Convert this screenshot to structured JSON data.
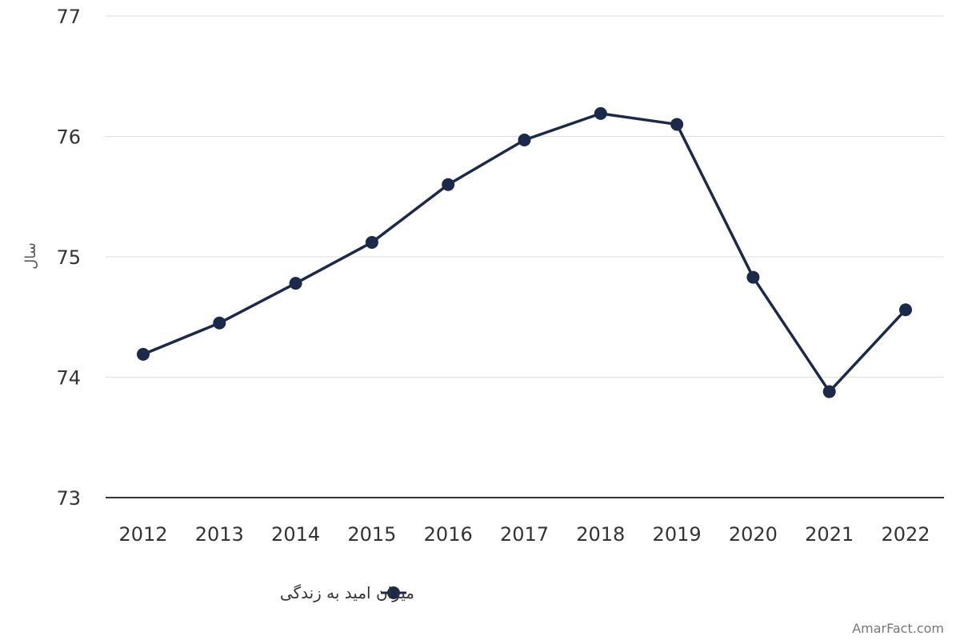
{
  "chart_data": {
    "type": "line",
    "title": "",
    "xlabel": "",
    "ylabel": "سال",
    "categories": [
      "2012",
      "2013",
      "2014",
      "2015",
      "2016",
      "2017",
      "2018",
      "2019",
      "2020",
      "2021",
      "2022"
    ],
    "series": [
      {
        "name": "میزان امید به زندگی",
        "values": [
          74.19,
          74.45,
          74.78,
          75.12,
          75.6,
          75.97,
          76.19,
          76.1,
          74.83,
          73.88,
          74.56
        ]
      }
    ],
    "ylim": [
      73,
      77
    ],
    "yticks": [
      "73",
      "74",
      "75",
      "76",
      "77"
    ],
    "grid": true,
    "legend_position": "bottom-center",
    "line_color": "#1b2a4a"
  },
  "watermark": "AmarFact.com"
}
